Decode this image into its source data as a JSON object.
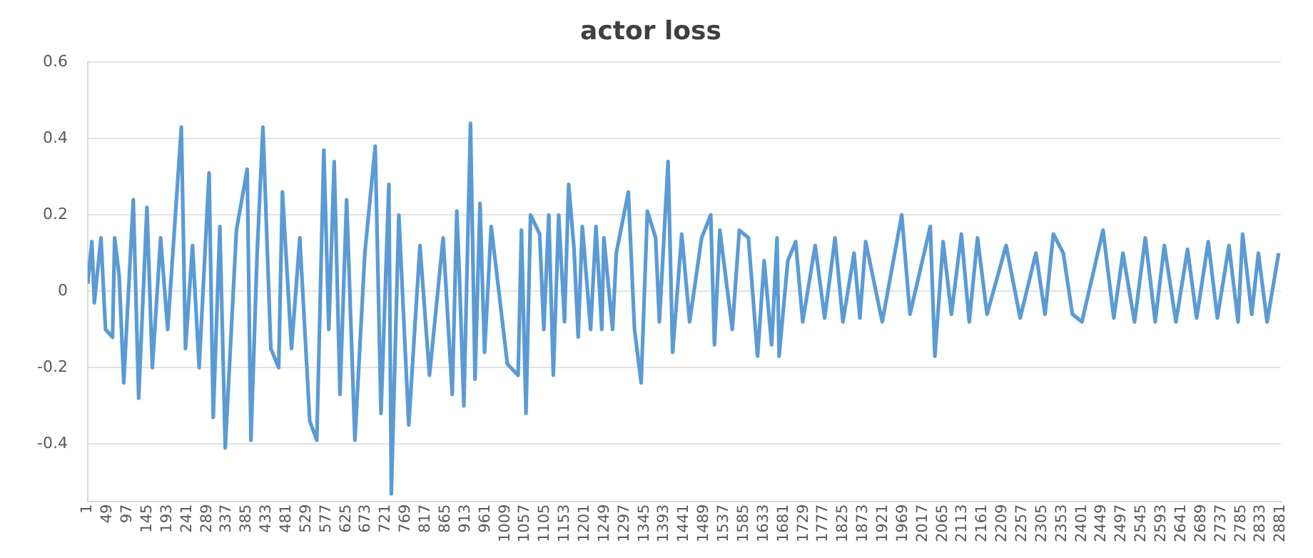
{
  "chart_data": {
    "type": "line",
    "title": "actor loss",
    "x": [
      1,
      11,
      17,
      33,
      44,
      61,
      66,
      77,
      88,
      111,
      124,
      144,
      157,
      177,
      194,
      227,
      237,
      254,
      270,
      294,
      304,
      320,
      333,
      360,
      386,
      395,
      410,
      424,
      443,
      462,
      471,
      493,
      513,
      537,
      554,
      571,
      583,
      596,
      610,
      626,
      646,
      670,
      695,
      709,
      728,
      734,
      752,
      776,
      803,
      826,
      859,
      881,
      892,
      898,
      909,
      925,
      936,
      948,
      959,
      975,
      1014,
      1040,
      1048,
      1059,
      1070,
      1092,
      1102,
      1114,
      1125,
      1138,
      1152,
      1162,
      1175,
      1185,
      1195,
      1215,
      1228,
      1242,
      1247,
      1268,
      1277,
      1306,
      1321,
      1337,
      1352,
      1372,
      1381,
      1402,
      1413,
      1435,
      1454,
      1483,
      1505,
      1514,
      1527,
      1557,
      1574,
      1596,
      1618,
      1634,
      1652,
      1665,
      1670,
      1691,
      1710,
      1727,
      1757,
      1780,
      1805,
      1824,
      1851,
      1865,
      1879,
      1919,
      1966,
      1986,
      2035,
      2046,
      2066,
      2086,
      2110,
      2129,
      2149,
      2172,
      2218,
      2252,
      2290,
      2312,
      2332,
      2356,
      2378,
      2401,
      2452,
      2478,
      2500,
      2528,
      2554,
      2578,
      2600,
      2628,
      2656,
      2678,
      2706,
      2728,
      2756,
      2778,
      2789,
      2811,
      2827,
      2848,
      2876
    ],
    "series": [
      {
        "color": "#5b9bd5",
        "values": [
          0.02,
          0.13,
          -0.03,
          0.14,
          -0.1,
          -0.12,
          0.14,
          0.04,
          -0.24,
          0.24,
          -0.28,
          0.22,
          -0.2,
          0.14,
          -0.1,
          0.43,
          -0.15,
          0.12,
          -0.2,
          0.31,
          -0.33,
          0.17,
          -0.41,
          0.16,
          0.32,
          -0.39,
          0.1,
          0.43,
          -0.15,
          -0.2,
          0.26,
          -0.15,
          0.14,
          -0.34,
          -0.39,
          0.37,
          -0.1,
          0.34,
          -0.27,
          0.24,
          -0.39,
          0.1,
          0.38,
          -0.32,
          0.28,
          -0.53,
          0.2,
          -0.35,
          0.12,
          -0.22,
          0.14,
          -0.27,
          0.21,
          0.05,
          -0.3,
          0.44,
          -0.23,
          0.23,
          -0.16,
          0.17,
          -0.19,
          -0.22,
          0.16,
          -0.32,
          0.2,
          0.15,
          -0.1,
          0.2,
          -0.22,
          0.2,
          -0.08,
          0.28,
          0.11,
          -0.12,
          0.17,
          -0.1,
          0.17,
          -0.1,
          0.14,
          -0.1,
          0.1,
          0.26,
          -0.1,
          -0.24,
          0.21,
          0.14,
          -0.08,
          0.34,
          -0.16,
          0.15,
          -0.08,
          0.14,
          0.2,
          -0.14,
          0.16,
          -0.1,
          0.16,
          0.14,
          -0.17,
          0.08,
          -0.14,
          0.14,
          -0.17,
          0.08,
          0.13,
          -0.08,
          0.12,
          -0.07,
          0.14,
          -0.08,
          0.1,
          -0.07,
          0.13,
          -0.08,
          0.2,
          -0.06,
          0.17,
          -0.17,
          0.13,
          -0.06,
          0.15,
          -0.08,
          0.14,
          -0.06,
          0.12,
          -0.07,
          0.1,
          -0.06,
          0.15,
          0.1,
          -0.06,
          -0.08,
          0.16,
          -0.07,
          0.1,
          -0.08,
          0.14,
          -0.08,
          0.12,
          -0.08,
          0.11,
          -0.07,
          0.13,
          -0.07,
          0.12,
          -0.08,
          0.15,
          -0.06,
          0.1,
          -0.08,
          0.1
        ]
      }
    ],
    "xlim": [
      1,
      2881
    ],
    "xticks": [
      1,
      49,
      97,
      145,
      193,
      241,
      289,
      337,
      385,
      433,
      481,
      529,
      577,
      625,
      673,
      721,
      769,
      817,
      865,
      913,
      961,
      1009,
      1057,
      1105,
      1153,
      1201,
      1249,
      1297,
      1345,
      1393,
      1441,
      1489,
      1537,
      1585,
      1633,
      1681,
      1729,
      1777,
      1825,
      1873,
      1921,
      1969,
      2017,
      2065,
      2113,
      2161,
      2209,
      2257,
      2305,
      2353,
      2401,
      2449,
      2497,
      2545,
      2593,
      2641,
      2689,
      2737,
      2785,
      2833,
      2881
    ],
    "ylim": [
      -0.55,
      0.6
    ],
    "yticks": [
      -0.4,
      -0.2,
      0,
      0.2,
      0.4,
      0.6
    ],
    "grid": "y",
    "legend": false,
    "marker": "none",
    "line_style": "solid"
  }
}
